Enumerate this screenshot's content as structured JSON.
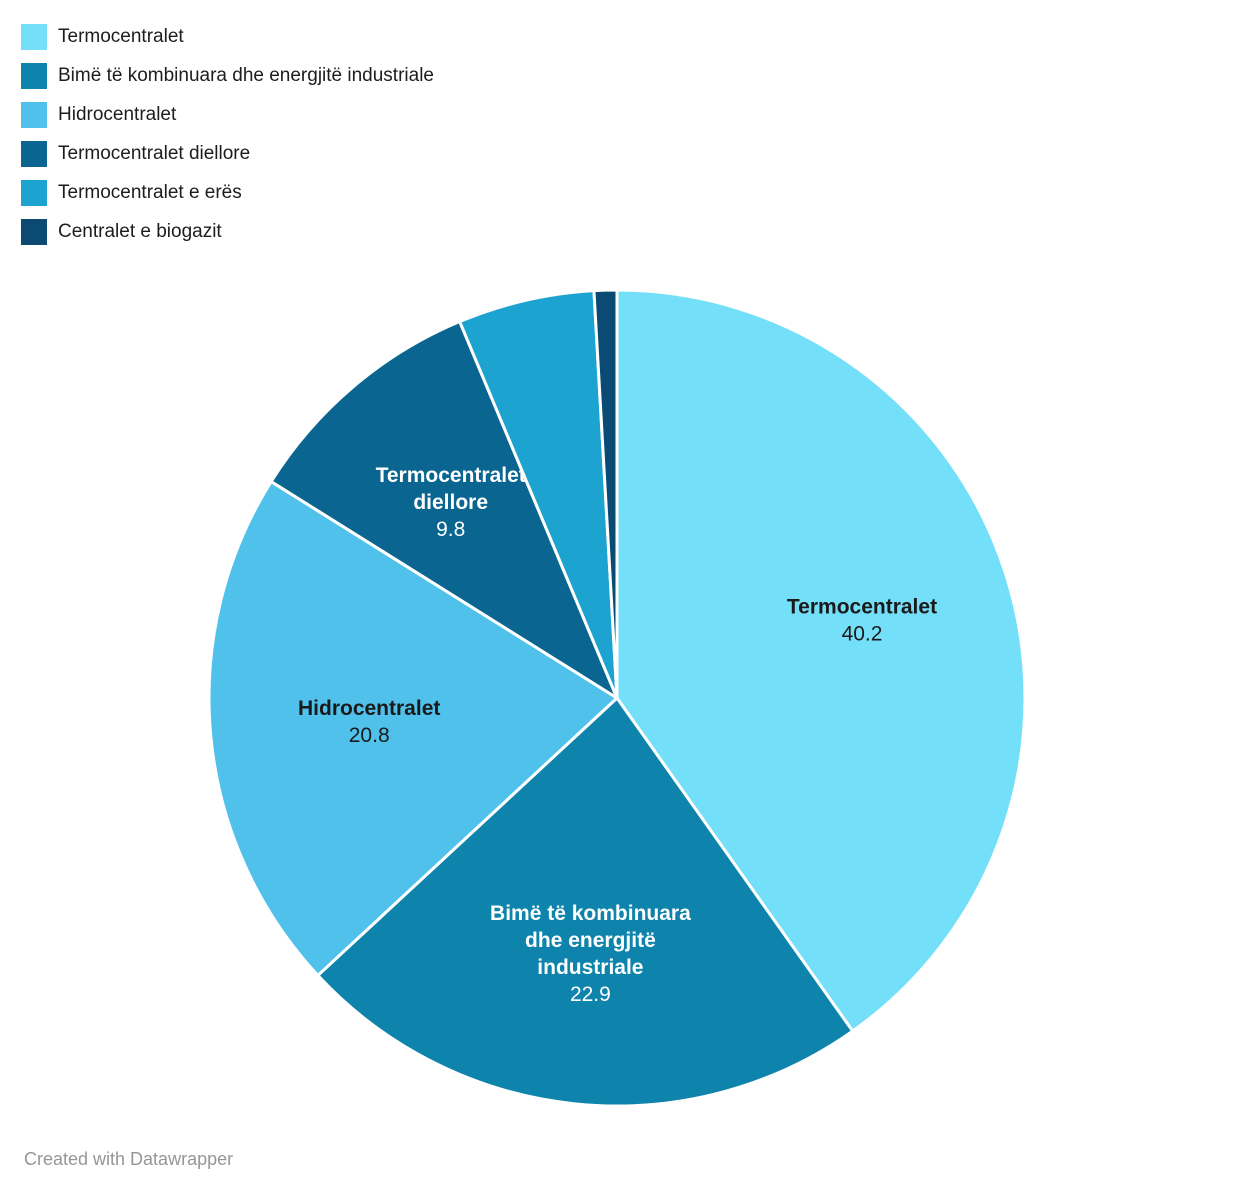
{
  "footer": {
    "text": "Created with Datawrapper"
  },
  "colors": {
    "background": "#ffffff",
    "slice_separator": "#ffffff",
    "legend_text": "#1d1d1d",
    "credit_text": "#969696"
  },
  "chart_data": {
    "type": "pie",
    "title": "",
    "legend_position": "top-left",
    "start_angle_deg": 0,
    "direction": "clockwise",
    "total": 100.0,
    "slices": [
      {
        "label": "Termocentralet",
        "value": 40.2,
        "value_label": "40.2",
        "color": "#74DFF9",
        "text_color": "#1a1a1a",
        "show_label": true,
        "label_lines": [
          "Termocentralet"
        ],
        "label_r": 0.63
      },
      {
        "label": "Bimë të kombinuara dhe energjitë industriale",
        "value": 22.9,
        "value_label": "22.9",
        "color": "#0E84AC",
        "text_color": "#ffffff",
        "show_label": true,
        "label_lines": [
          "Bimë të kombinuara",
          "dhe energjitë",
          "industriale"
        ],
        "label_r": 0.63
      },
      {
        "label": "Hidrocentralet",
        "value": 20.8,
        "value_label": "20.8",
        "color": "#4FC1EB",
        "text_color": "#1a1a1a",
        "show_label": true,
        "label_lines": [
          "Hidrocentralet"
        ],
        "label_r": 0.61
      },
      {
        "label": "Termocentralet diellore",
        "value": 9.8,
        "value_label": "9.8",
        "color": "#0A6590",
        "text_color": "#ffffff",
        "show_label": true,
        "label_lines": [
          "Termocentralet",
          "diellore"
        ],
        "label_r": 0.63
      },
      {
        "label": "Termocentralet e erës",
        "value": 5.4,
        "value_label": "",
        "color": "#1DA3D0",
        "text_color": "#ffffff",
        "show_label": false,
        "estimated": true
      },
      {
        "label": "Centralet e biogazit",
        "value": 0.9,
        "value_label": "",
        "color": "#0B4A72",
        "text_color": "#ffffff",
        "show_label": false,
        "estimated": true
      }
    ]
  }
}
